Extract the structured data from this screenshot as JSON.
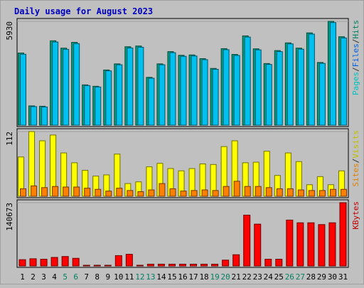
{
  "chart_data": {
    "type": "bar",
    "title": "Daily usage for August 2023",
    "x": [
      "1",
      "2",
      "3",
      "4",
      "5",
      "6",
      "7",
      "8",
      "9",
      "10",
      "11",
      "12",
      "13",
      "14",
      "15",
      "16",
      "17",
      "18",
      "19",
      "20",
      "21",
      "22",
      "23",
      "24",
      "25",
      "26",
      "27",
      "28",
      "29",
      "30",
      "31"
    ],
    "weekend_days": [
      "5",
      "6",
      "12",
      "13",
      "19",
      "20",
      "26",
      "27"
    ],
    "panels": [
      {
        "name": "hits-files-pages",
        "ymax_label": "5930",
        "ymax": 5930,
        "legend": [
          "Pages",
          "/",
          "Files",
          "/",
          "Hits"
        ],
        "legend_colors": [
          "#00c0c0",
          "#303030",
          "#0060e0",
          "#303030",
          "#008060"
        ],
        "series": [
          {
            "name": "Hits",
            "color": "#00a080",
            "values": [
              4120,
              1100,
              1080,
              4820,
              4400,
              4730,
              2300,
              2220,
              3150,
              3500,
              4480,
              4520,
              2730,
              3500,
              4200,
              3990,
              4010,
              3800,
              3240,
              4370,
              4040,
              5100,
              4360,
              3520,
              4260,
              4700,
              4400,
              5270,
              3580,
              5930,
              5050
            ]
          },
          {
            "name": "Files",
            "color": "#00c0f0",
            "values": [
              4050,
              1060,
              1040,
              4750,
              4330,
              4660,
              2260,
              2180,
              3100,
              3450,
              4410,
              4450,
              2680,
              3450,
              4140,
              3930,
              3950,
              3740,
              3190,
              4310,
              3980,
              5030,
              4300,
              3470,
              4200,
              4640,
              4340,
              5200,
              3530,
              5860,
              4980
            ]
          }
        ]
      },
      {
        "name": "visits-sites",
        "ymax_label": "112",
        "ymax": 112,
        "legend": [
          "Sites",
          "/",
          "Visits"
        ],
        "legend_colors": [
          "#e08000",
          "#303030",
          "#c0c000"
        ],
        "series": [
          {
            "name": "Visits",
            "color": "#ffff00",
            "values": [
              68,
              112,
              96,
              106,
              75,
              58,
              45,
              35,
              37,
              73,
              22,
              25,
              51,
              57,
              48,
              44,
              48,
              56,
              55,
              86,
              96,
              58,
              59,
              78,
              36,
              75,
              60,
              20,
              34,
              20,
              44
            ]
          },
          {
            "name": "Sites",
            "color": "#ff8000",
            "values": [
              13,
              18,
              15,
              17,
              16,
              16,
              14,
              12,
              9,
              14,
              10,
              8,
              11,
              22,
              13,
              9,
              10,
              11,
              10,
              17,
              26,
              17,
              17,
              15,
              13,
              13,
              11,
              10,
              10,
              12,
              12
            ]
          }
        ]
      },
      {
        "name": "kbytes",
        "ymax_label": "140673",
        "ymax": 140673,
        "legend": [
          "KBytes"
        ],
        "legend_colors": [
          "#c00000"
        ],
        "series": [
          {
            "name": "KBytes",
            "color": "#ff0000",
            "values": [
              14000,
              16000,
              15000,
              19000,
              21000,
              17000,
              1500,
              1500,
              1500,
              23000,
              26000,
              1500,
              4000,
              4000,
              4000,
              4000,
              4000,
              4000,
              4000,
              13000,
              25000,
              113000,
              93000,
              15000,
              15000,
              102000,
              96000,
              96000,
              92000,
              96000,
              140673
            ]
          }
        ]
      }
    ]
  }
}
